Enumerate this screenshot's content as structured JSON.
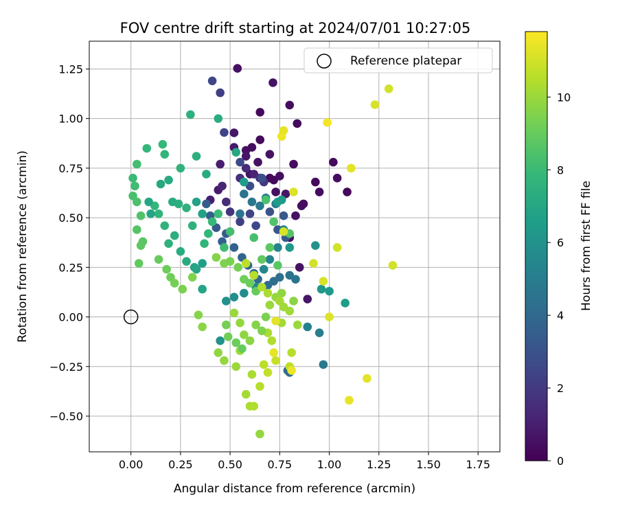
{
  "chart_data": {
    "type": "scatter",
    "title": "FOV centre drift starting at 2024/07/01 10:27:05",
    "xlabel": "Angular distance from reference (arcmin)",
    "ylabel": "Rotation from reference (arcmin)",
    "xlim": [
      -0.21,
      1.86
    ],
    "ylim": [
      -0.68,
      1.39
    ],
    "xticks": [
      0.0,
      0.25,
      0.5,
      0.75,
      1.0,
      1.25,
      1.5,
      1.75
    ],
    "xtick_labels": [
      "0.00",
      "0.25",
      "0.50",
      "0.75",
      "1.00",
      "1.25",
      "1.50",
      "1.75"
    ],
    "yticks": [
      -0.5,
      -0.25,
      0.0,
      0.25,
      0.5,
      0.75,
      1.0,
      1.25
    ],
    "ytick_labels": [
      "−0.50",
      "−0.25",
      "0.00",
      "0.25",
      "0.50",
      "0.75",
      "1.00",
      "1.25"
    ],
    "grid": true,
    "legend": {
      "placement": "top-right",
      "label": "Reference platepar"
    },
    "reference_point": {
      "x": 0.0,
      "y": 0.0
    },
    "colorbar": {
      "label": "Hours from first FF file",
      "colormap": "viridis",
      "range": [
        0,
        11.8
      ],
      "ticks": [
        0,
        2,
        4,
        6,
        8,
        10
      ],
      "tick_labels": [
        "0",
        "2",
        "4",
        "6",
        "8",
        "10"
      ]
    },
    "colormap_stops": [
      "#440154",
      "#482878",
      "#3e4a89",
      "#31688e",
      "#26828e",
      "#1f9e89",
      "#35b779",
      "#6ece58",
      "#b5de2b",
      "#fde725"
    ],
    "points": [
      [
        0.537,
        1.253,
        0.5
      ],
      [
        0.716,
        1.181,
        0.6
      ],
      [
        0.8,
        1.068,
        0.4
      ],
      [
        0.838,
        0.975,
        0.3
      ],
      [
        0.651,
        1.032,
        0.3
      ],
      [
        0.52,
        0.928,
        0.7
      ],
      [
        0.58,
        0.84,
        0.5
      ],
      [
        0.61,
        0.855,
        0.4
      ],
      [
        0.651,
        0.893,
        0.3
      ],
      [
        0.7,
        0.82,
        0.6
      ],
      [
        0.52,
        0.855,
        0.8
      ],
      [
        0.45,
        0.77,
        1.0
      ],
      [
        0.58,
        0.81,
        0.7
      ],
      [
        0.64,
        0.78,
        0.5
      ],
      [
        0.6,
        0.72,
        0.6
      ],
      [
        0.7,
        0.7,
        0.4
      ],
      [
        0.72,
        0.69,
        0.3
      ],
      [
        0.75,
        0.71,
        0.5
      ],
      [
        0.82,
        0.77,
        0.4
      ],
      [
        0.73,
        0.63,
        0.5
      ],
      [
        0.78,
        0.62,
        0.7
      ],
      [
        0.86,
        0.56,
        0.5
      ],
      [
        0.87,
        0.57,
        0.4
      ],
      [
        0.93,
        0.68,
        0.3
      ],
      [
        0.95,
        0.63,
        0.4
      ],
      [
        1.02,
        0.78,
        0.3
      ],
      [
        1.04,
        0.7,
        0.4
      ],
      [
        1.09,
        0.63,
        0.2
      ],
      [
        0.83,
        0.51,
        0.6
      ],
      [
        0.8,
        0.4,
        0.5
      ],
      [
        0.85,
        0.25,
        0.6
      ],
      [
        0.89,
        0.09,
        0.7
      ],
      [
        0.44,
        0.64,
        0.9
      ],
      [
        0.46,
        0.66,
        1.2
      ],
      [
        0.4,
        0.59,
        1.0
      ],
      [
        0.48,
        0.58,
        1.5
      ],
      [
        0.5,
        0.53,
        1.8
      ],
      [
        0.55,
        0.7,
        1.6
      ],
      [
        0.58,
        0.75,
        1.4
      ],
      [
        0.62,
        0.72,
        1.2
      ],
      [
        0.65,
        0.7,
        1.7
      ],
      [
        0.67,
        0.68,
        2.0
      ],
      [
        0.55,
        0.48,
        2.2
      ],
      [
        0.6,
        0.52,
        2.4
      ],
      [
        0.63,
        0.46,
        2.6
      ],
      [
        0.45,
        1.13,
        2.2
      ],
      [
        0.41,
        1.19,
        2.5
      ],
      [
        0.47,
        0.93,
        2.4
      ],
      [
        0.55,
        0.78,
        2.6
      ],
      [
        0.6,
        0.66,
        2.8
      ],
      [
        0.66,
        0.7,
        2.9
      ],
      [
        0.7,
        0.53,
        3.0
      ],
      [
        0.74,
        0.44,
        3.1
      ],
      [
        0.77,
        0.51,
        3.2
      ],
      [
        0.78,
        0.4,
        3.3
      ],
      [
        0.38,
        0.57,
        3.4
      ],
      [
        0.4,
        0.51,
        3.5
      ],
      [
        0.43,
        0.45,
        3.2
      ],
      [
        0.46,
        0.38,
        3.6
      ],
      [
        0.48,
        0.42,
        3.4
      ],
      [
        0.52,
        0.35,
        3.7
      ],
      [
        0.56,
        0.3,
        3.8
      ],
      [
        0.59,
        0.26,
        3.9
      ],
      [
        0.62,
        0.22,
        4.0
      ],
      [
        0.64,
        0.19,
        4.1
      ],
      [
        0.69,
        0.16,
        4.2
      ],
      [
        0.72,
        0.18,
        4.3
      ],
      [
        0.75,
        0.2,
        4.4
      ],
      [
        0.8,
        0.21,
        4.5
      ],
      [
        0.83,
        0.19,
        4.6
      ],
      [
        0.79,
        -0.27,
        4.1
      ],
      [
        0.8,
        -0.28,
        4.3
      ],
      [
        0.97,
        -0.24,
        4.8
      ],
      [
        0.95,
        -0.08,
        5.0
      ],
      [
        0.89,
        -0.05,
        5.2
      ],
      [
        0.55,
        0.52,
        4.5
      ],
      [
        0.57,
        0.62,
        4.6
      ],
      [
        0.61,
        0.58,
        4.7
      ],
      [
        0.65,
        0.56,
        4.8
      ],
      [
        0.68,
        0.6,
        5.0
      ],
      [
        0.73,
        0.57,
        5.1
      ],
      [
        0.77,
        0.44,
        5.2
      ],
      [
        0.74,
        0.35,
        5.3
      ],
      [
        0.7,
        0.29,
        5.4
      ],
      [
        0.67,
        0.24,
        5.5
      ],
      [
        0.63,
        0.15,
        5.6
      ],
      [
        0.57,
        0.12,
        5.7
      ],
      [
        0.52,
        0.1,
        5.8
      ],
      [
        0.48,
        0.08,
        5.9
      ],
      [
        0.45,
        -0.12,
        6.0
      ],
      [
        0.93,
        0.36,
        6.0
      ],
      [
        0.96,
        0.14,
        6.2
      ],
      [
        1.0,
        0.13,
        6.3
      ],
      [
        1.08,
        0.07,
        6.5
      ],
      [
        0.36,
        0.27,
        6.6
      ],
      [
        0.32,
        0.25,
        6.8
      ],
      [
        0.36,
        0.14,
        6.9
      ],
      [
        0.33,
        0.24,
        7.0
      ],
      [
        0.28,
        0.28,
        7.2
      ],
      [
        0.25,
        0.33,
        7.3
      ],
      [
        0.22,
        0.41,
        7.4
      ],
      [
        0.19,
        0.37,
        7.5
      ],
      [
        0.17,
        0.46,
        7.6
      ],
      [
        0.14,
        0.52,
        7.7
      ],
      [
        0.12,
        0.56,
        7.8
      ],
      [
        0.08,
        0.85,
        7.8
      ],
      [
        0.16,
        0.87,
        7.9
      ],
      [
        0.17,
        0.82,
        7.7
      ],
      [
        0.25,
        0.75,
        7.6
      ],
      [
        0.3,
        1.02,
        7.5
      ],
      [
        0.33,
        0.81,
        7.4
      ],
      [
        0.44,
        1.0,
        7.3
      ],
      [
        0.38,
        0.72,
        7.2
      ],
      [
        0.53,
        0.83,
        7.1
      ],
      [
        0.01,
        0.7,
        8.0
      ],
      [
        0.02,
        0.66,
        8.1
      ],
      [
        0.03,
        0.77,
        8.2
      ],
      [
        0.01,
        0.61,
        8.3
      ],
      [
        0.03,
        0.58,
        8.4
      ],
      [
        0.05,
        0.51,
        8.5
      ],
      [
        0.03,
        0.44,
        8.6
      ],
      [
        0.06,
        0.38,
        8.7
      ],
      [
        0.05,
        0.36,
        8.8
      ],
      [
        0.04,
        0.27,
        8.9
      ],
      [
        0.14,
        0.29,
        9.0
      ],
      [
        0.18,
        0.24,
        9.1
      ],
      [
        0.2,
        0.2,
        9.2
      ],
      [
        0.22,
        0.17,
        9.3
      ],
      [
        0.26,
        0.14,
        9.4
      ],
      [
        0.31,
        0.2,
        9.5
      ],
      [
        0.34,
        0.01,
        9.6
      ],
      [
        0.36,
        -0.05,
        9.7
      ],
      [
        0.44,
        -0.18,
        9.8
      ],
      [
        0.47,
        -0.22,
        9.9
      ],
      [
        0.53,
        -0.25,
        10.0
      ],
      [
        0.55,
        -0.17,
        10.1
      ],
      [
        0.58,
        -0.39,
        10.2
      ],
      [
        0.6,
        -0.45,
        10.3
      ],
      [
        0.62,
        -0.45,
        10.4
      ],
      [
        0.65,
        -0.59,
        9.9
      ],
      [
        0.61,
        -0.29,
        10.3
      ],
      [
        0.65,
        -0.35,
        10.5
      ],
      [
        0.67,
        -0.24,
        10.6
      ],
      [
        0.69,
        -0.28,
        10.7
      ],
      [
        0.73,
        -0.22,
        10.8
      ],
      [
        0.8,
        -0.25,
        10.6
      ],
      [
        0.81,
        -0.18,
        10.5
      ],
      [
        0.71,
        -0.12,
        10.4
      ],
      [
        0.69,
        -0.08,
        10.3
      ],
      [
        0.76,
        -0.03,
        10.2
      ],
      [
        0.8,
        0.03,
        10.1
      ],
      [
        0.84,
        -0.04,
        10.0
      ],
      [
        0.7,
        0.06,
        10.0
      ],
      [
        0.73,
        0.1,
        9.9
      ],
      [
        0.76,
        0.12,
        9.8
      ],
      [
        0.82,
        0.08,
        9.7
      ],
      [
        0.43,
        0.3,
        9.6
      ],
      [
        0.47,
        0.27,
        9.5
      ],
      [
        0.5,
        0.28,
        9.4
      ],
      [
        0.54,
        0.25,
        9.3
      ],
      [
        0.57,
        0.19,
        9.2
      ],
      [
        0.6,
        0.17,
        9.1
      ],
      [
        0.63,
        0.13,
        9.0
      ],
      [
        0.66,
        0.29,
        8.9
      ],
      [
        0.7,
        0.35,
        8.8
      ],
      [
        0.74,
        0.26,
        8.7
      ],
      [
        0.8,
        0.42,
        8.6
      ],
      [
        0.72,
        0.48,
        8.5
      ],
      [
        0.68,
        0.59,
        8.4
      ],
      [
        0.62,
        0.4,
        8.3
      ],
      [
        0.5,
        0.43,
        8.2
      ],
      [
        0.47,
        0.35,
        8.1
      ],
      [
        0.44,
        0.52,
        8.0
      ],
      [
        0.41,
        0.48,
        7.9
      ],
      [
        0.39,
        0.42,
        7.8
      ],
      [
        0.37,
        0.37,
        7.7
      ],
      [
        0.31,
        0.46,
        7.6
      ],
      [
        0.28,
        0.55,
        7.5
      ],
      [
        0.24,
        0.57,
        7.4
      ],
      [
        0.21,
        0.58,
        7.3
      ],
      [
        0.19,
        0.69,
        7.2
      ],
      [
        0.15,
        0.67,
        7.1
      ],
      [
        0.09,
        0.58,
        7.0
      ],
      [
        0.1,
        0.52,
        6.9
      ],
      [
        0.33,
        0.58,
        6.8
      ],
      [
        0.36,
        0.52,
        6.7
      ],
      [
        0.57,
        0.68,
        6.6
      ],
      [
        0.74,
        0.58,
        6.5
      ],
      [
        0.76,
        0.59,
        6.4
      ],
      [
        0.8,
        0.35,
        6.3
      ],
      [
        0.99,
        0.98,
        11.6
      ],
      [
        0.76,
        0.91,
        11.5
      ],
      [
        0.77,
        0.94,
        11.4
      ],
      [
        1.11,
        0.75,
        11.3
      ],
      [
        0.82,
        0.63,
        11.2
      ],
      [
        0.77,
        0.43,
        11.1
      ],
      [
        1.23,
        1.07,
        11.1
      ],
      [
        1.3,
        1.15,
        11.0
      ],
      [
        1.04,
        0.35,
        11.0
      ],
      [
        0.92,
        0.27,
        11.0
      ],
      [
        0.97,
        0.18,
        11.1
      ],
      [
        1.32,
        0.26,
        11.0
      ],
      [
        1.0,
        0.0,
        11.2
      ],
      [
        0.73,
        -0.02,
        11.3
      ],
      [
        0.72,
        -0.18,
        11.4
      ],
      [
        0.81,
        -0.27,
        11.5
      ],
      [
        1.19,
        -0.31,
        11.3
      ],
      [
        1.1,
        -0.42,
        11.4
      ],
      [
        0.58,
        0.27,
        10.6
      ],
      [
        0.62,
        0.21,
        10.5
      ],
      [
        0.66,
        0.15,
        10.4
      ],
      [
        0.69,
        0.12,
        10.3
      ],
      [
        0.75,
        0.08,
        10.2
      ],
      [
        0.77,
        0.05,
        10.1
      ],
      [
        0.52,
        0.02,
        10.0
      ],
      [
        0.55,
        -0.03,
        9.9
      ],
      [
        0.57,
        -0.09,
        9.8
      ],
      [
        0.6,
        -0.12,
        9.7
      ],
      [
        0.63,
        -0.04,
        9.6
      ],
      [
        0.66,
        -0.07,
        9.5
      ],
      [
        0.68,
        0.0,
        9.4
      ],
      [
        0.48,
        -0.04,
        9.3
      ],
      [
        0.49,
        -0.1,
        9.2
      ],
      [
        0.53,
        -0.13,
        9.1
      ],
      [
        0.56,
        -0.16,
        9.0
      ]
    ]
  }
}
